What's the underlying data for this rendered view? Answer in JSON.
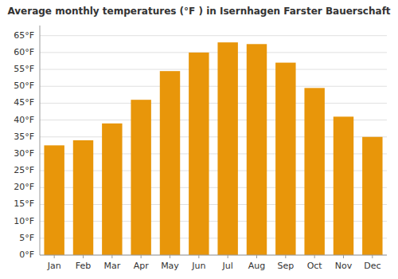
{
  "chart_data": {
    "type": "bar",
    "title": "Average monthly temperatures (°F ) in Isernhagen Farster Bauerschaft",
    "categories": [
      "Jan",
      "Feb",
      "Mar",
      "Apr",
      "May",
      "Jun",
      "Jul",
      "Aug",
      "Sep",
      "Oct",
      "Nov",
      "Dec"
    ],
    "values": [
      32.5,
      34.0,
      39.0,
      46.0,
      54.5,
      60.0,
      63.0,
      62.5,
      57.0,
      49.5,
      41.0,
      35.0
    ],
    "color": "#E8960A",
    "ylim": [
      0,
      68
    ],
    "yticks": [
      {
        "value": 0,
        "label": "0°F"
      },
      {
        "value": 5,
        "label": "5°F"
      },
      {
        "value": 10,
        "label": "10°F"
      },
      {
        "value": 15,
        "label": "15°F"
      },
      {
        "value": 20,
        "label": "20°F"
      },
      {
        "value": 25,
        "label": "25°F"
      },
      {
        "value": 30,
        "label": "30°F"
      },
      {
        "value": 35,
        "label": "35°F"
      },
      {
        "value": 40,
        "label": "40°F"
      },
      {
        "value": 45,
        "label": "45°F"
      },
      {
        "value": 50,
        "label": "50°F"
      },
      {
        "value": 55,
        "label": "55°F"
      },
      {
        "value": 60,
        "label": "60°F"
      },
      {
        "value": 65,
        "label": "65°F"
      }
    ],
    "grid": true
  }
}
